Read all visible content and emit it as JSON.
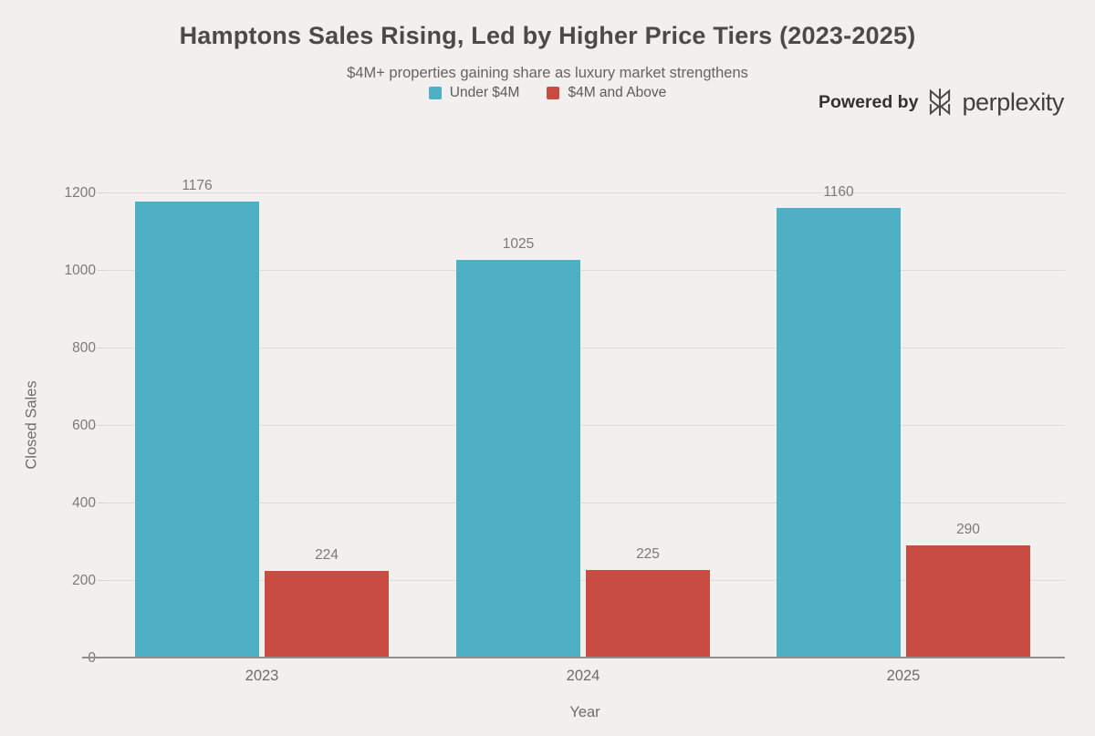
{
  "header": {
    "title": "Hamptons Sales Rising, Led by Higher Price Tiers (2023-2025)",
    "subtitle": "$4M+ properties gaining share as luxury market strengthens",
    "powered_by_label": "Powered by",
    "brand_name": "perplexity",
    "brand_logo_icon": "perplexity-asterisk-knot"
  },
  "chart_data": {
    "type": "bar",
    "title": "Hamptons Sales Rising, Led by Higher Price Tiers (2023-2025)",
    "subtitle": "$4M+ properties gaining share as luxury market strengthens",
    "categories": [
      "2023",
      "2024",
      "2025"
    ],
    "series": [
      {
        "name": "Under $4M",
        "color": "#4fafc5",
        "values": [
          1176,
          1025,
          1160
        ]
      },
      {
        "name": "$4M and Above",
        "color": "#c94c42",
        "values": [
          224,
          225,
          290
        ]
      }
    ],
    "xlabel": "Year",
    "ylabel": "Closed Sales",
    "ylim": [
      0,
      1200
    ],
    "yticks": [
      0,
      200,
      400,
      600,
      800,
      1000,
      1200
    ],
    "grid": true,
    "legend_position": "top-center",
    "background_color": "#f1f0ee",
    "gridline_color": "#dedcd8",
    "axis_line_color": "#908f8b",
    "label_color": "#7b7a77"
  }
}
